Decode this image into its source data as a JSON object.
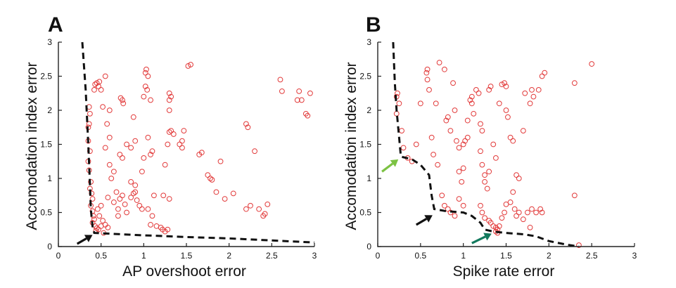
{
  "chart_data": [
    {
      "type": "scatter",
      "panel_label": "A",
      "xlabel": "AP overshoot error",
      "ylabel": "Accomodation index error",
      "xlim": [
        0,
        3
      ],
      "ylim": [
        0,
        3
      ],
      "xticks": [
        "0",
        "0.5",
        "1",
        "1.5",
        "2",
        "2.5",
        "3"
      ],
      "yticks": [
        "0",
        "0.5",
        "1",
        "1.5",
        "2",
        "2.5",
        "3"
      ],
      "marker_color": "#e23a3a",
      "front_color": "#111111",
      "points": [
        [
          0.36,
          2.05
        ],
        [
          0.37,
          1.95
        ],
        [
          0.36,
          1.8
        ],
        [
          0.35,
          1.75
        ],
        [
          0.35,
          1.55
        ],
        [
          0.37,
          1.4
        ],
        [
          0.35,
          1.25
        ],
        [
          0.36,
          1.12
        ],
        [
          0.38,
          0.95
        ],
        [
          0.37,
          0.85
        ],
        [
          0.39,
          0.78
        ],
        [
          0.4,
          0.7
        ],
        [
          0.38,
          0.6
        ],
        [
          0.4,
          0.52
        ],
        [
          0.41,
          0.45
        ],
        [
          0.42,
          0.4
        ],
        [
          0.4,
          0.35
        ],
        [
          0.43,
          0.3
        ],
        [
          0.45,
          0.27
        ],
        [
          0.44,
          0.23
        ],
        [
          0.47,
          0.25
        ],
        [
          0.5,
          0.3
        ],
        [
          0.52,
          0.38
        ],
        [
          0.55,
          0.32
        ],
        [
          0.58,
          0.28
        ],
        [
          0.48,
          0.45
        ],
        [
          0.46,
          0.55
        ],
        [
          0.5,
          0.6
        ],
        [
          0.53,
          0.2
        ],
        [
          0.42,
          2.3
        ],
        [
          0.45,
          2.4
        ],
        [
          0.43,
          2.38
        ],
        [
          0.47,
          2.35
        ],
        [
          0.48,
          2.42
        ],
        [
          0.5,
          2.3
        ],
        [
          0.55,
          2.5
        ],
        [
          0.52,
          2.05
        ],
        [
          0.6,
          2.0
        ],
        [
          0.57,
          1.8
        ],
        [
          0.6,
          1.6
        ],
        [
          0.55,
          1.45
        ],
        [
          0.6,
          1.2
        ],
        [
          0.65,
          1.1
        ],
        [
          0.62,
          1.0
        ],
        [
          0.68,
          0.8
        ],
        [
          0.58,
          0.72
        ],
        [
          0.65,
          0.65
        ],
        [
          0.7,
          0.55
        ],
        [
          0.72,
          0.7
        ],
        [
          0.75,
          0.75
        ],
        [
          0.7,
          0.45
        ],
        [
          0.8,
          0.5
        ],
        [
          0.78,
          0.62
        ],
        [
          0.85,
          0.72
        ],
        [
          0.88,
          0.78
        ],
        [
          0.9,
          0.8
        ],
        [
          0.92,
          0.68
        ],
        [
          0.95,
          0.6
        ],
        [
          0.98,
          0.55
        ],
        [
          0.9,
          0.9
        ],
        [
          0.85,
          0.95
        ],
        [
          0.75,
          1.3
        ],
        [
          0.72,
          1.35
        ],
        [
          0.8,
          1.5
        ],
        [
          0.85,
          1.45
        ],
        [
          0.9,
          1.55
        ],
        [
          0.88,
          1.9
        ],
        [
          0.75,
          2.15
        ],
        [
          0.73,
          2.18
        ],
        [
          0.76,
          2.1
        ],
        [
          1.0,
          2.2
        ],
        [
          1.02,
          2.55
        ],
        [
          1.03,
          2.6
        ],
        [
          1.05,
          2.5
        ],
        [
          1.02,
          2.35
        ],
        [
          1.04,
          2.3
        ],
        [
          1.08,
          2.15
        ],
        [
          1.05,
          1.6
        ],
        [
          1.0,
          1.3
        ],
        [
          0.98,
          1.1
        ],
        [
          1.08,
          1.35
        ],
        [
          1.1,
          1.4
        ],
        [
          1.12,
          0.75
        ],
        [
          1.05,
          0.55
        ],
        [
          1.1,
          0.45
        ],
        [
          1.08,
          0.32
        ],
        [
          1.15,
          0.3
        ],
        [
          1.2,
          0.28
        ],
        [
          1.22,
          0.25
        ],
        [
          1.25,
          0.22
        ],
        [
          1.28,
          0.25
        ],
        [
          1.23,
          0.75
        ],
        [
          1.3,
          0.7
        ],
        [
          1.25,
          1.2
        ],
        [
          1.28,
          1.5
        ],
        [
          1.3,
          1.68
        ],
        [
          1.32,
          1.7
        ],
        [
          1.35,
          1.65
        ],
        [
          1.3,
          2.0
        ],
        [
          1.3,
          2.15
        ],
        [
          1.32,
          2.2
        ],
        [
          1.3,
          2.25
        ],
        [
          1.45,
          1.45
        ],
        [
          1.42,
          1.5
        ],
        [
          1.45,
          1.55
        ],
        [
          1.47,
          1.7
        ],
        [
          1.52,
          2.65
        ],
        [
          1.55,
          2.67
        ],
        [
          1.65,
          1.35
        ],
        [
          1.68,
          1.38
        ],
        [
          1.75,
          1.05
        ],
        [
          1.78,
          1.0
        ],
        [
          1.8,
          0.98
        ],
        [
          1.85,
          0.8
        ],
        [
          1.9,
          1.25
        ],
        [
          1.95,
          0.7
        ],
        [
          2.05,
          0.78
        ],
        [
          2.2,
          1.8
        ],
        [
          2.22,
          1.75
        ],
        [
          2.25,
          0.6
        ],
        [
          2.2,
          0.55
        ],
        [
          2.3,
          1.4
        ],
        [
          2.35,
          0.55
        ],
        [
          2.4,
          0.45
        ],
        [
          2.42,
          0.48
        ],
        [
          2.45,
          0.62
        ],
        [
          2.6,
          2.45
        ],
        [
          2.62,
          2.28
        ],
        [
          2.8,
          2.15
        ],
        [
          2.82,
          2.28
        ],
        [
          2.85,
          2.15
        ],
        [
          2.9,
          1.95
        ],
        [
          2.92,
          1.92
        ],
        [
          2.95,
          2.25
        ]
      ],
      "front": [
        [
          0.28,
          3.0
        ],
        [
          0.32,
          2.3
        ],
        [
          0.35,
          1.5
        ],
        [
          0.37,
          0.9
        ],
        [
          0.38,
          0.55
        ],
        [
          0.4,
          0.3
        ],
        [
          0.42,
          0.2
        ],
        [
          0.9,
          0.17
        ],
        [
          1.5,
          0.14
        ],
        [
          2.0,
          0.12
        ],
        [
          2.5,
          0.09
        ],
        [
          3.0,
          0.06
        ]
      ],
      "arrows": [
        {
          "from": [
            0.22,
            0.04
          ],
          "to": [
            0.4,
            0.17
          ],
          "color": "#111111"
        }
      ]
    },
    {
      "type": "scatter",
      "panel_label": "B",
      "xlabel": "Spike rate error",
      "ylabel": "Accomodation index error",
      "xlim": [
        0,
        3
      ],
      "ylim": [
        0,
        3
      ],
      "xticks": [
        "0",
        "0.5",
        "1",
        "1.5",
        "2",
        "2.5",
        "3"
      ],
      "yticks": [
        "0",
        "0.5",
        "1",
        "1.5",
        "2",
        "2.5",
        "3"
      ],
      "marker_color": "#e23a3a",
      "front_color": "#111111",
      "points": [
        [
          0.22,
          2.2
        ],
        [
          0.23,
          2.25
        ],
        [
          0.25,
          2.1
        ],
        [
          0.22,
          1.95
        ],
        [
          0.28,
          1.7
        ],
        [
          0.3,
          1.45
        ],
        [
          0.35,
          1.3
        ],
        [
          0.4,
          1.25
        ],
        [
          0.45,
          1.5
        ],
        [
          0.5,
          2.1
        ],
        [
          0.58,
          2.6
        ],
        [
          0.57,
          2.55
        ],
        [
          0.58,
          2.45
        ],
        [
          0.6,
          2.3
        ],
        [
          0.63,
          1.6
        ],
        [
          0.65,
          1.35
        ],
        [
          0.7,
          1.2
        ],
        [
          0.68,
          2.1
        ],
        [
          0.72,
          2.7
        ],
        [
          0.78,
          2.6
        ],
        [
          0.8,
          1.85
        ],
        [
          0.82,
          1.9
        ],
        [
          0.85,
          1.7
        ],
        [
          0.88,
          2.4
        ],
        [
          0.9,
          2.0
        ],
        [
          0.92,
          1.55
        ],
        [
          0.95,
          1.45
        ],
        [
          0.95,
          1.1
        ],
        [
          0.98,
          0.95
        ],
        [
          1.0,
          0.6
        ],
        [
          0.75,
          0.75
        ],
        [
          0.78,
          0.6
        ],
        [
          0.82,
          0.55
        ],
        [
          0.85,
          0.5
        ],
        [
          0.9,
          0.45
        ],
        [
          0.95,
          0.7
        ],
        [
          1.0,
          1.15
        ],
        [
          1.0,
          1.5
        ],
        [
          1.02,
          1.55
        ],
        [
          1.05,
          1.6
        ],
        [
          1.05,
          1.85
        ],
        [
          1.08,
          2.15
        ],
        [
          1.1,
          2.2
        ],
        [
          1.1,
          2.1
        ],
        [
          1.12,
          1.95
        ],
        [
          1.15,
          2.3
        ],
        [
          1.18,
          2.25
        ],
        [
          1.2,
          1.8
        ],
        [
          1.22,
          1.7
        ],
        [
          1.2,
          1.4
        ],
        [
          1.22,
          1.2
        ],
        [
          1.25,
          1.05
        ],
        [
          1.25,
          0.95
        ],
        [
          1.28,
          0.85
        ],
        [
          1.2,
          0.6
        ],
        [
          1.22,
          0.5
        ],
        [
          1.25,
          0.42
        ],
        [
          1.3,
          0.38
        ],
        [
          1.32,
          0.35
        ],
        [
          1.35,
          0.3
        ],
        [
          1.38,
          0.28
        ],
        [
          1.4,
          0.25
        ],
        [
          1.38,
          0.22
        ],
        [
          1.4,
          0.2
        ],
        [
          1.42,
          0.3
        ],
        [
          1.45,
          0.42
        ],
        [
          1.48,
          0.5
        ],
        [
          1.5,
          0.62
        ],
        [
          1.55,
          0.65
        ],
        [
          1.58,
          0.8
        ],
        [
          1.6,
          0.55
        ],
        [
          1.62,
          0.45
        ],
        [
          1.65,
          0.5
        ],
        [
          1.7,
          0.4
        ],
        [
          1.75,
          0.5
        ],
        [
          1.8,
          0.55
        ],
        [
          1.85,
          0.5
        ],
        [
          1.9,
          0.55
        ],
        [
          1.92,
          0.5
        ],
        [
          1.78,
          0.28
        ],
        [
          1.62,
          1.05
        ],
        [
          1.65,
          1.0
        ],
        [
          1.7,
          1.7
        ],
        [
          1.72,
          2.25
        ],
        [
          1.78,
          2.1
        ],
        [
          1.5,
          2.0
        ],
        [
          1.5,
          2.35
        ],
        [
          1.48,
          2.4
        ],
        [
          1.45,
          2.38
        ],
        [
          1.52,
          1.9
        ],
        [
          1.3,
          2.3
        ],
        [
          1.32,
          2.35
        ],
        [
          1.35,
          1.5
        ],
        [
          1.38,
          1.3
        ],
        [
          1.3,
          1.1
        ],
        [
          1.42,
          2.1
        ],
        [
          1.55,
          1.6
        ],
        [
          1.58,
          1.55
        ],
        [
          1.8,
          2.3
        ],
        [
          1.82,
          2.2
        ],
        [
          1.88,
          2.3
        ],
        [
          1.92,
          2.5
        ],
        [
          1.95,
          2.55
        ],
        [
          2.3,
          2.4
        ],
        [
          2.3,
          0.75
        ],
        [
          2.5,
          2.68
        ],
        [
          2.35,
          0.02
        ]
      ],
      "front": [
        [
          0.18,
          3.0
        ],
        [
          0.2,
          2.4
        ],
        [
          0.22,
          2.0
        ],
        [
          0.25,
          1.6
        ],
        [
          0.27,
          1.32
        ],
        [
          0.4,
          1.28
        ],
        [
          0.5,
          1.2
        ],
        [
          0.6,
          1.05
        ],
        [
          0.63,
          0.75
        ],
        [
          0.66,
          0.55
        ],
        [
          0.8,
          0.52
        ],
        [
          1.0,
          0.5
        ],
        [
          1.1,
          0.45
        ],
        [
          1.2,
          0.35
        ],
        [
          1.25,
          0.25
        ],
        [
          1.35,
          0.22
        ],
        [
          1.5,
          0.2
        ],
        [
          1.7,
          0.18
        ],
        [
          1.85,
          0.15
        ],
        [
          2.0,
          0.08
        ],
        [
          2.2,
          0.03
        ],
        [
          2.35,
          0.0
        ]
      ],
      "arrows": [
        {
          "from": [
            0.05,
            1.1
          ],
          "to": [
            0.24,
            1.28
          ],
          "color": "#7cc243"
        },
        {
          "from": [
            0.45,
            0.32
          ],
          "to": [
            0.64,
            0.46
          ],
          "color": "#111111"
        },
        {
          "from": [
            1.1,
            0.05
          ],
          "to": [
            1.33,
            0.19
          ],
          "color": "#137a5e"
        }
      ]
    }
  ]
}
